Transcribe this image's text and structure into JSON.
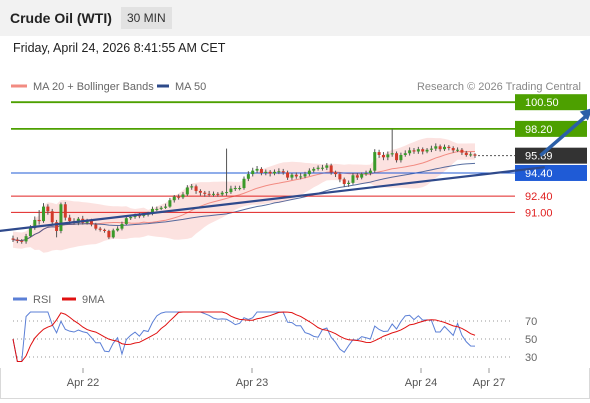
{
  "header": {
    "title": "Crude Oil (WTI)",
    "interval": "30 MIN"
  },
  "timestamp": "Friday, April 24, 2026 8:41:55 AM CET",
  "legend": {
    "ma20": {
      "label": "MA 20 + Bollinger Bands",
      "color": "#f28b82"
    },
    "ma50": {
      "label": "MA 50",
      "color": "#2d4a8a"
    },
    "rsi": {
      "label": "RSI",
      "color": "#5b7fd6"
    },
    "rsi_ma": {
      "label": "9MA",
      "color": "#e01010"
    },
    "credit": "Research © 2026 Trading Central"
  },
  "chart_data": {
    "type": "candlestick",
    "x_ticks": [
      "Apr 22",
      "Apr 23",
      "Apr 24",
      "Apr 27"
    ],
    "levels": [
      {
        "value": 100.5,
        "label": "100.50",
        "kind": "resistance",
        "color": "#4da000"
      },
      {
        "value": 98.2,
        "label": "98.20",
        "kind": "resistance",
        "color": "#4da000"
      },
      {
        "value": 95.89,
        "label": "95.89",
        "kind": "last",
        "color": "#333333"
      },
      {
        "value": 94.4,
        "label": "94.40",
        "kind": "pivot",
        "color": "#1f5bd6"
      },
      {
        "value": 92.4,
        "label": "92.40",
        "kind": "support",
        "color": "#e02020"
      },
      {
        "value": 91.0,
        "label": "91.00",
        "kind": "support",
        "color": "#e02020"
      }
    ],
    "trendline": {
      "from": [
        -10,
        89.1
      ],
      "to": [
        122,
        94.9
      ]
    },
    "forecast_arrow": {
      "from": [
        121,
        95.9
      ],
      "to": [
        133,
        100.0
      ]
    },
    "candles": [
      [
        88.75,
        88.65,
        89.0,
        88.45
      ],
      [
        88.65,
        88.55,
        88.85,
        88.35
      ],
      [
        88.55,
        88.5,
        88.7,
        88.3
      ],
      [
        88.5,
        88.95,
        89.15,
        88.3
      ],
      [
        88.95,
        89.65,
        89.9,
        88.85
      ],
      [
        89.65,
        90.35,
        90.65,
        89.5
      ],
      [
        90.35,
        90.25,
        91.2,
        89.95
      ],
      [
        90.25,
        91.5,
        91.8,
        90.1
      ],
      [
        91.5,
        91.1,
        91.7,
        90.8
      ],
      [
        91.1,
        90.15,
        91.3,
        89.95
      ],
      [
        90.15,
        89.4,
        90.35,
        88.85
      ],
      [
        89.4,
        91.7,
        91.85,
        89.2
      ],
      [
        91.7,
        90.55,
        91.9,
        90.3
      ],
      [
        90.55,
        90.25,
        90.8,
        90.0
      ],
      [
        90.25,
        90.1,
        90.5,
        89.95
      ],
      [
        90.1,
        90.45,
        90.6,
        89.9
      ],
      [
        90.45,
        90.1,
        90.7,
        89.95
      ],
      [
        90.1,
        90.3,
        90.45,
        89.95
      ],
      [
        90.3,
        89.95,
        90.45,
        89.8
      ],
      [
        89.95,
        89.6,
        90.1,
        89.45
      ],
      [
        89.6,
        89.5,
        89.75,
        89.35
      ],
      [
        89.5,
        89.4,
        89.6,
        89.25
      ],
      [
        89.4,
        88.85,
        89.5,
        88.7
      ],
      [
        88.85,
        89.45,
        89.6,
        88.75
      ],
      [
        89.45,
        89.6,
        89.8,
        89.35
      ],
      [
        89.6,
        90.0,
        90.2,
        89.45
      ],
      [
        90.0,
        90.5,
        90.65,
        89.9
      ],
      [
        90.5,
        90.6,
        90.8,
        90.35
      ],
      [
        90.6,
        90.75,
        90.9,
        90.45
      ],
      [
        90.75,
        90.7,
        90.95,
        90.5
      ],
      [
        90.7,
        90.8,
        90.95,
        90.55
      ],
      [
        90.8,
        90.9,
        91.05,
        90.65
      ],
      [
        90.9,
        91.3,
        91.5,
        90.75
      ],
      [
        91.3,
        91.3,
        91.5,
        91.1
      ],
      [
        91.3,
        91.4,
        91.55,
        91.2
      ],
      [
        91.4,
        91.5,
        91.75,
        91.3
      ],
      [
        91.5,
        92.05,
        92.25,
        91.4
      ],
      [
        92.05,
        92.35,
        92.5,
        91.85
      ],
      [
        92.35,
        92.3,
        92.55,
        92.1
      ],
      [
        92.3,
        92.55,
        92.75,
        92.15
      ],
      [
        92.55,
        93.15,
        93.35,
        92.4
      ],
      [
        93.15,
        93.25,
        93.45,
        92.95
      ],
      [
        93.25,
        92.85,
        93.4,
        92.6
      ],
      [
        92.85,
        92.7,
        93.0,
        92.45
      ],
      [
        92.7,
        92.6,
        92.85,
        92.35
      ],
      [
        92.6,
        92.55,
        92.85,
        92.35
      ],
      [
        92.55,
        92.6,
        92.8,
        92.35
      ],
      [
        92.6,
        92.55,
        92.75,
        92.35
      ],
      [
        92.55,
        92.7,
        92.85,
        92.4
      ],
      [
        92.7,
        92.75,
        96.5,
        92.45
      ],
      [
        92.75,
        93.05,
        93.3,
        92.6
      ],
      [
        93.05,
        93.1,
        93.3,
        92.85
      ],
      [
        93.1,
        93.1,
        93.3,
        92.9
      ],
      [
        93.1,
        93.9,
        94.1,
        92.95
      ],
      [
        93.9,
        94.3,
        94.55,
        93.7
      ],
      [
        94.3,
        94.6,
        94.85,
        94.1
      ],
      [
        94.6,
        94.75,
        95.0,
        94.4
      ],
      [
        94.75,
        94.4,
        94.9,
        94.2
      ],
      [
        94.4,
        94.5,
        94.7,
        94.2
      ],
      [
        94.5,
        94.35,
        94.65,
        94.1
      ],
      [
        94.35,
        94.5,
        94.7,
        94.2
      ],
      [
        94.5,
        94.55,
        94.8,
        94.3
      ],
      [
        94.55,
        94.45,
        94.75,
        94.25
      ],
      [
        94.45,
        94.0,
        94.6,
        93.8
      ],
      [
        94.0,
        94.25,
        94.4,
        93.8
      ],
      [
        94.25,
        94.1,
        94.45,
        93.9
      ],
      [
        94.1,
        94.1,
        94.4,
        93.85
      ],
      [
        94.1,
        94.3,
        94.5,
        93.95
      ],
      [
        94.3,
        94.6,
        94.8,
        94.15
      ],
      [
        94.6,
        94.75,
        94.9,
        94.45
      ],
      [
        94.75,
        94.85,
        95.05,
        94.6
      ],
      [
        94.85,
        94.85,
        95.1,
        94.6
      ],
      [
        94.85,
        95.05,
        95.25,
        94.65
      ],
      [
        95.05,
        94.45,
        95.2,
        94.25
      ],
      [
        94.45,
        94.3,
        94.6,
        94.05
      ],
      [
        94.3,
        93.85,
        94.45,
        93.6
      ],
      [
        93.85,
        93.45,
        94.0,
        93.2
      ],
      [
        93.45,
        93.55,
        93.75,
        93.2
      ],
      [
        93.55,
        94.2,
        94.4,
        93.4
      ],
      [
        94.2,
        94.0,
        94.4,
        93.8
      ],
      [
        94.0,
        94.3,
        94.45,
        93.85
      ],
      [
        94.3,
        94.4,
        94.6,
        94.15
      ],
      [
        94.4,
        94.6,
        94.8,
        94.2
      ],
      [
        94.6,
        96.2,
        96.45,
        94.4
      ],
      [
        96.2,
        95.95,
        96.4,
        95.7
      ],
      [
        95.95,
        95.75,
        96.2,
        95.5
      ],
      [
        95.75,
        96.0,
        96.25,
        95.5
      ],
      [
        96.0,
        96.1,
        98.2,
        95.8
      ],
      [
        96.1,
        95.5,
        96.25,
        95.3
      ],
      [
        95.5,
        95.95,
        96.15,
        95.3
      ],
      [
        95.95,
        96.1,
        96.35,
        95.8
      ],
      [
        96.1,
        96.35,
        96.6,
        95.9
      ],
      [
        96.35,
        96.25,
        96.55,
        96.05
      ],
      [
        96.25,
        96.45,
        96.65,
        96.05
      ],
      [
        96.45,
        96.25,
        96.6,
        96.0
      ],
      [
        96.25,
        96.4,
        96.55,
        96.1
      ],
      [
        96.4,
        96.5,
        96.75,
        96.2
      ],
      [
        96.5,
        96.7,
        96.95,
        96.3
      ],
      [
        96.7,
        96.45,
        96.85,
        96.25
      ],
      [
        96.45,
        96.65,
        96.85,
        96.3
      ],
      [
        96.65,
        96.55,
        96.8,
        96.35
      ],
      [
        96.55,
        96.35,
        96.7,
        96.15
      ],
      [
        96.35,
        96.4,
        96.6,
        96.2
      ],
      [
        96.4,
        96.15,
        96.55,
        95.95
      ],
      [
        96.15,
        95.95,
        96.3,
        95.8
      ],
      [
        95.95,
        96.0,
        96.2,
        95.8
      ],
      [
        96.0,
        95.89,
        96.1,
        95.7
      ]
    ],
    "rsi_axis": [
      30,
      50,
      70
    ]
  }
}
